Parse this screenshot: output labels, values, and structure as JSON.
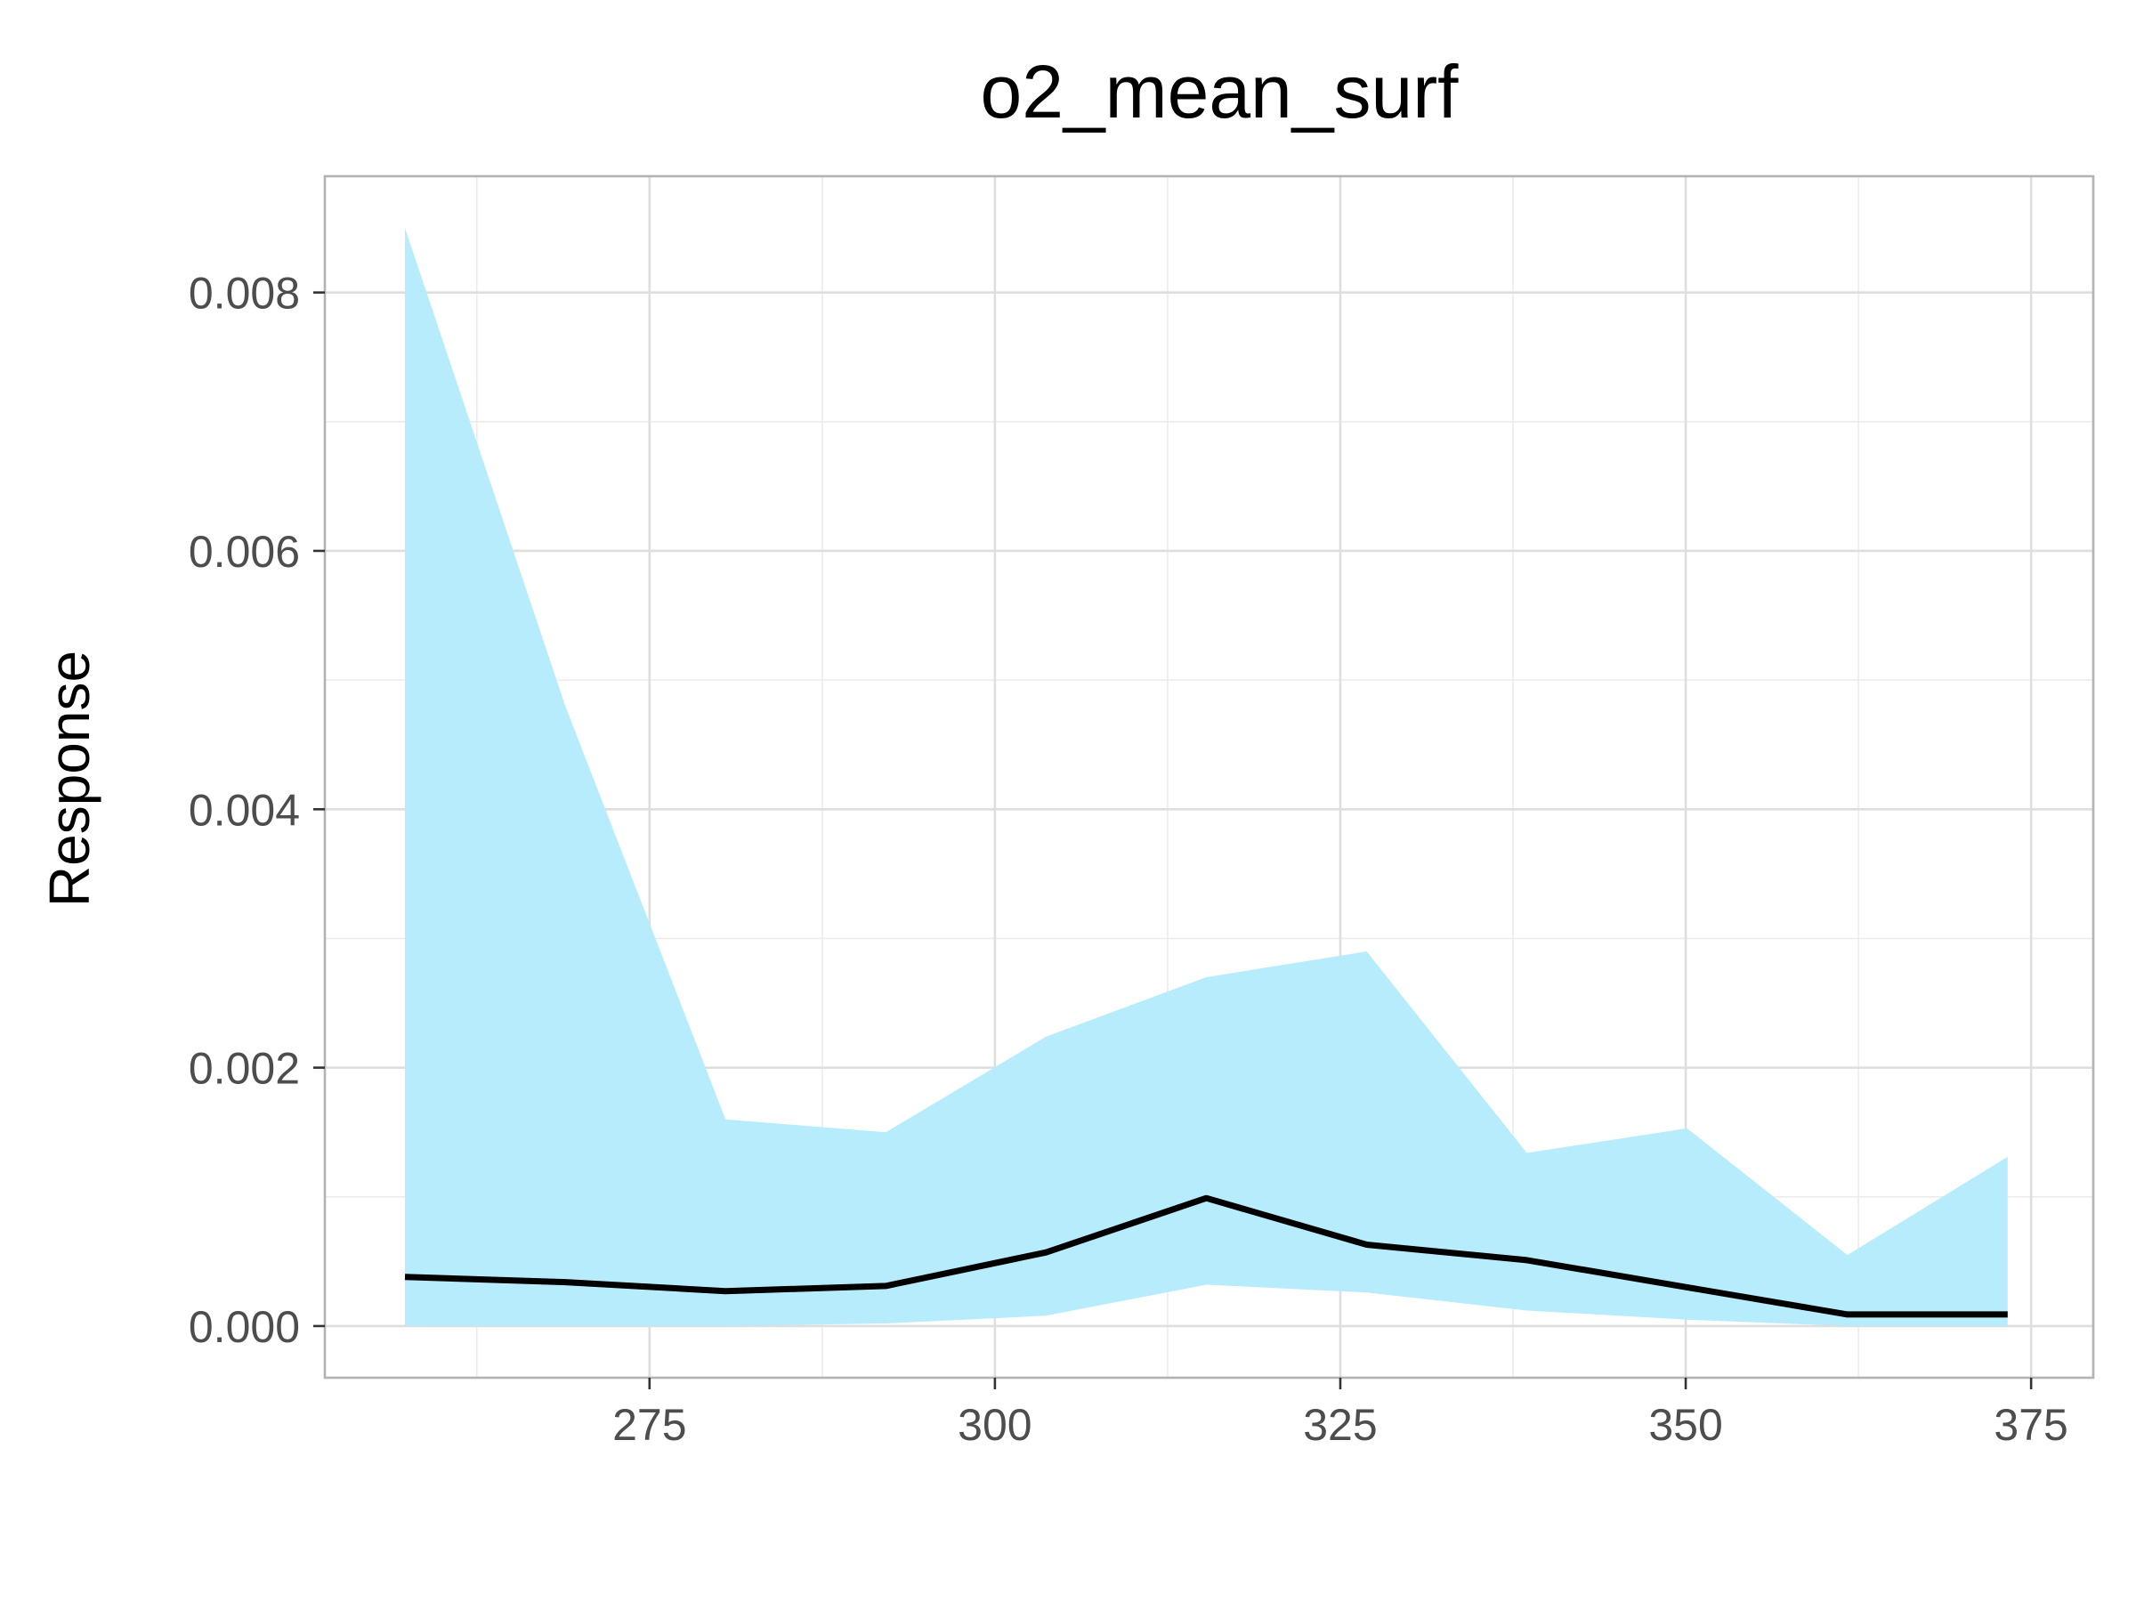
{
  "chart_data": {
    "type": "area",
    "title": "o2_mean_surf",
    "xlabel": "",
    "ylabel": "Response",
    "xlim": [
      251.5,
      379.5
    ],
    "ylim": [
      -0.0004,
      0.0089
    ],
    "x_ticks": [
      275,
      300,
      325,
      350,
      375
    ],
    "x_tick_labels": [
      "275",
      "300",
      "325",
      "350",
      "375"
    ],
    "y_ticks": [
      0,
      0.002,
      0.004,
      0.006,
      0.008
    ],
    "y_tick_labels": [
      "0.000",
      "0.002",
      "0.004",
      "0.006",
      "0.008"
    ],
    "grid": true,
    "legend": "none",
    "x": [
      257.3,
      268.9,
      280.5,
      292.1,
      303.7,
      315.3,
      326.9,
      338.5,
      350.1,
      361.7,
      373.3
    ],
    "series": [
      {
        "role": "mean",
        "values": [
          0.00038,
          0.00034,
          0.00027,
          0.00031,
          0.00057,
          0.00099,
          0.00063,
          0.00051,
          0.0003,
          9e-05,
          9e-05
        ],
        "color": "#000000"
      },
      {
        "role": "lower",
        "values": [
          0.0,
          0.0,
          0.0,
          2e-05,
          8e-05,
          0.00032,
          0.00026,
          0.00012,
          5e-05,
          0.0,
          0.0
        ]
      },
      {
        "role": "upper",
        "values": [
          0.0085,
          0.0048,
          0.0016,
          0.0015,
          0.00224,
          0.0027,
          0.0029,
          0.00134,
          0.00153,
          0.00055,
          0.00131
        ]
      }
    ],
    "band_color": "#b3ebfd",
    "panel_border_color": "#b3b3b3",
    "grid_major_color": "#dedede",
    "grid_minor_color": "#ececec"
  }
}
